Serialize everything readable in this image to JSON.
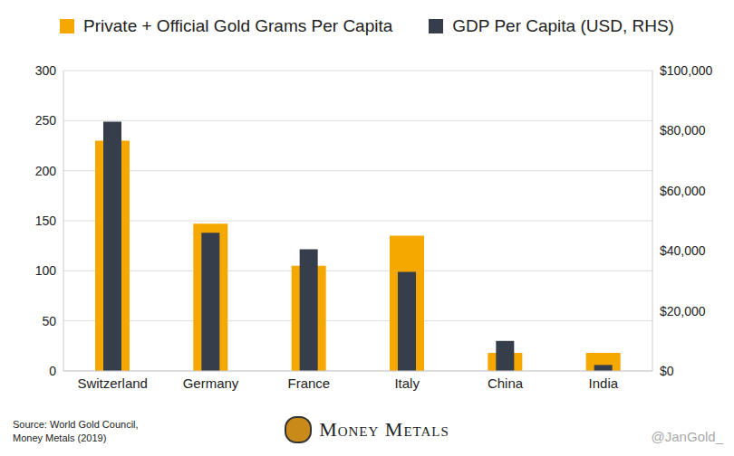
{
  "chart_data": {
    "type": "bar",
    "categories": [
      "Switzerland",
      "Germany",
      "France",
      "Italy",
      "China",
      "India"
    ],
    "series": [
      {
        "name": "Private + Official Gold Grams Per Capita",
        "color": "#f5a800",
        "values": [
          230,
          147,
          105,
          135,
          18,
          18
        ]
      },
      {
        "name": "GDP Per Capita (USD, RHS)",
        "color": "#363e4c",
        "values": [
          83000,
          46000,
          40500,
          33000,
          10000,
          2000
        ],
        "axis": "y2"
      }
    ],
    "ylim": [
      0,
      300
    ],
    "yticks": [
      0,
      50,
      100,
      150,
      200,
      250,
      300
    ],
    "y2lim": [
      0,
      100000
    ],
    "y2ticks": [
      {
        "value": 0,
        "label": "$0"
      },
      {
        "value": 20000,
        "label": "$20,000"
      },
      {
        "value": 40000,
        "label": "$40,000"
      },
      {
        "value": 60000,
        "label": "$60,000"
      },
      {
        "value": 80000,
        "label": "$80,000"
      },
      {
        "value": 100000,
        "label": "$100,000"
      }
    ],
    "grid": true,
    "legend": "top",
    "source": [
      "Source: World Gold Council,",
      "Money Metals (2019)"
    ],
    "logo": "Money Metals",
    "credit": "@JanGold_"
  }
}
